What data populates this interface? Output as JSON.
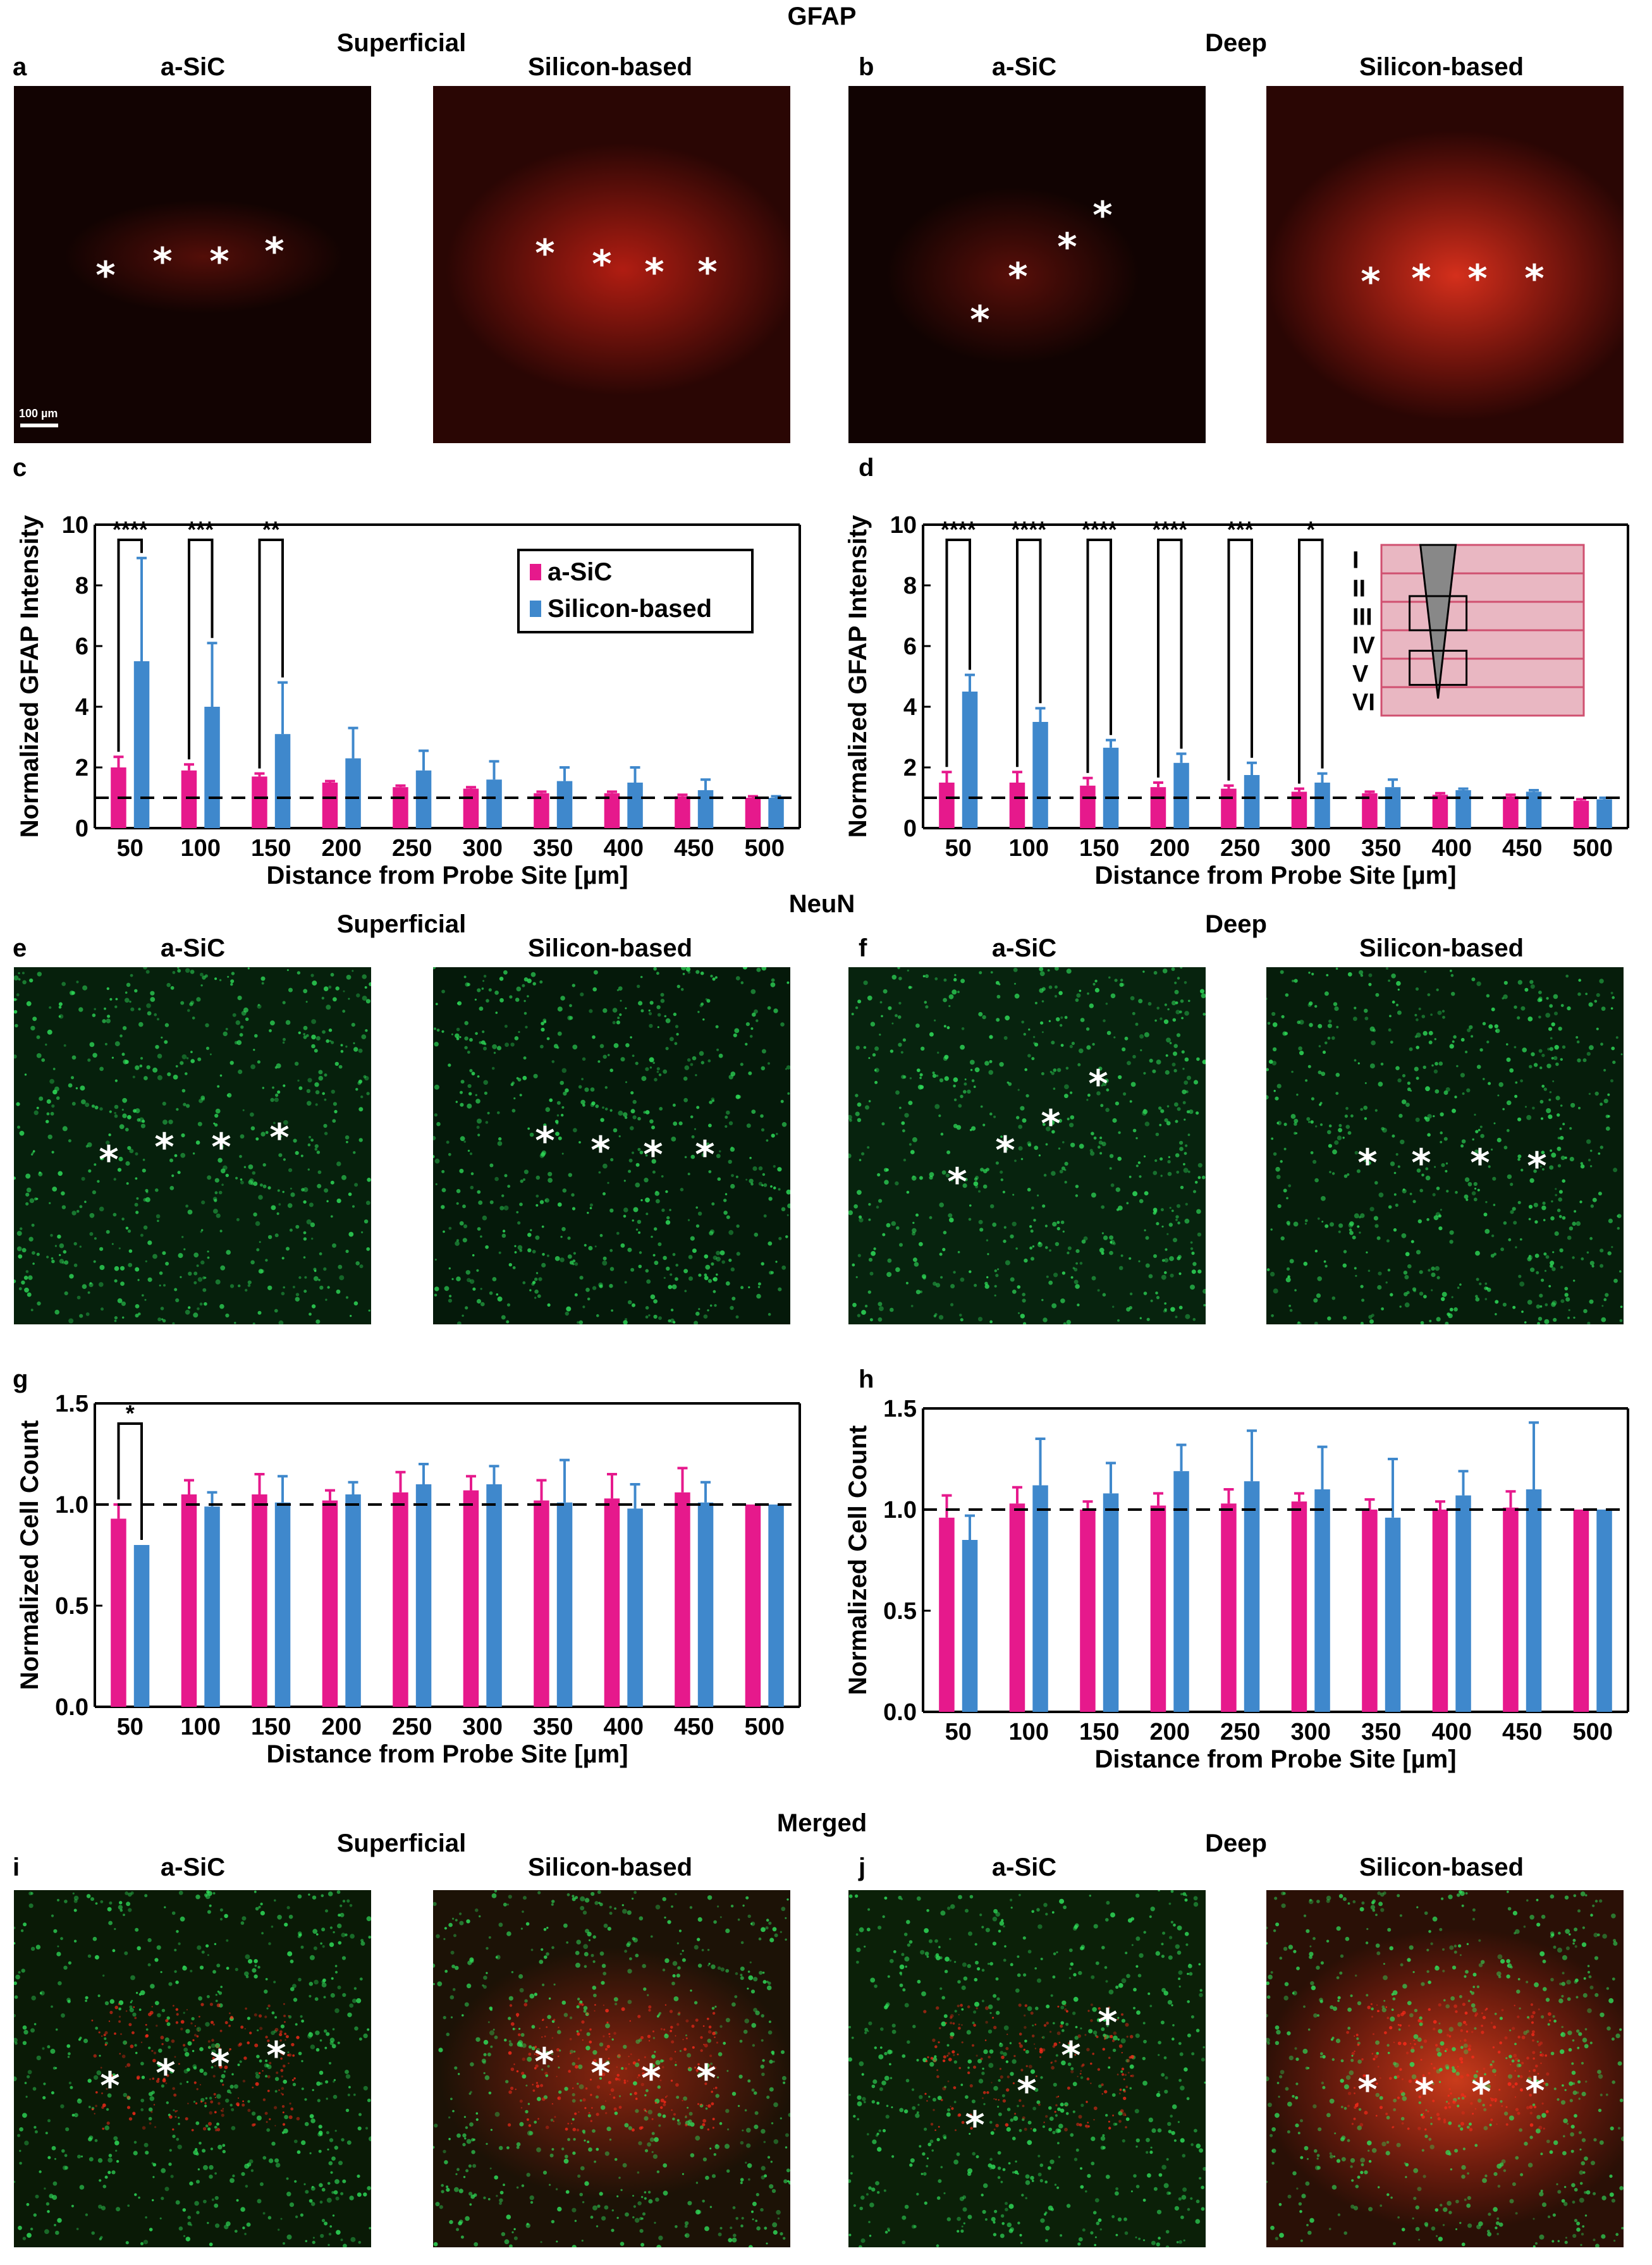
{
  "sections": {
    "gfap": "GFAP",
    "neun": "NeuN",
    "merged": "Merged"
  },
  "regions": {
    "superficial": "Superficial",
    "deep": "Deep"
  },
  "conditions": {
    "asic": "a-SiC",
    "silicon": "Silicon-based"
  },
  "panel_letters": [
    "a",
    "b",
    "c",
    "d",
    "e",
    "f",
    "g",
    "h",
    "i",
    "j"
  ],
  "scale_bar": "100 µm",
  "asterisk": "*",
  "colors": {
    "asic": "#e6198c",
    "silicon": "#3f88cc",
    "gfap_stain": "#ff2a1a",
    "neun_stain": "#2fe05a",
    "inset_fill": "#e9b7c2",
    "inset_line": "#d05070"
  },
  "legend": {
    "asic": "a-SiC",
    "silicon": "Silicon-based"
  },
  "inset_layers": [
    "I",
    "II",
    "III",
    "IV",
    "V",
    "VI"
  ],
  "chart_data": [
    {
      "panel": "c",
      "type": "bar",
      "title": "",
      "xlabel": "Distance from Probe Site [µm]",
      "ylabel": "Normalized GFAP Intensity",
      "ylim": [
        0,
        10
      ],
      "yticks": [
        "0",
        "2",
        "4",
        "6",
        "8",
        "10"
      ],
      "categories": [
        "50",
        "100",
        "150",
        "200",
        "250",
        "300",
        "350",
        "400",
        "450",
        "500"
      ],
      "series": [
        {
          "name": "a-SiC",
          "values": [
            2.0,
            1.9,
            1.7,
            1.5,
            1.35,
            1.3,
            1.15,
            1.15,
            1.05,
            1.0
          ],
          "errors": [
            0.35,
            0.2,
            0.1,
            0.05,
            0.05,
            0.05,
            0.05,
            0.05,
            0.05,
            0.05
          ]
        },
        {
          "name": "Silicon-based",
          "values": [
            5.5,
            4.0,
            3.1,
            2.3,
            1.9,
            1.6,
            1.55,
            1.5,
            1.25,
            1.0
          ],
          "errors": [
            3.4,
            2.1,
            1.7,
            1.0,
            0.65,
            0.6,
            0.45,
            0.5,
            0.35,
            0.05
          ]
        }
      ],
      "baseline": 1.0,
      "significance": [
        {
          "category": "50",
          "label": "****"
        },
        {
          "category": "100",
          "label": "***"
        },
        {
          "category": "150",
          "label": "**"
        }
      ],
      "legend_position": "top-right"
    },
    {
      "panel": "d",
      "type": "bar",
      "title": "",
      "xlabel": "Distance from Probe Site [µm]",
      "ylabel": "Normalized GFAP  Intensity",
      "ylim": [
        0,
        10
      ],
      "yticks": [
        "0",
        "2",
        "4",
        "6",
        "8",
        "10"
      ],
      "categories": [
        "50",
        "100",
        "150",
        "200",
        "250",
        "300",
        "350",
        "400",
        "450",
        "500"
      ],
      "series": [
        {
          "name": "a-SiC",
          "values": [
            1.5,
            1.5,
            1.4,
            1.35,
            1.3,
            1.2,
            1.15,
            1.1,
            1.05,
            0.9
          ],
          "errors": [
            0.35,
            0.35,
            0.25,
            0.15,
            0.1,
            0.1,
            0.05,
            0.05,
            0.05,
            0.05
          ]
        },
        {
          "name": "Silicon-based",
          "values": [
            4.5,
            3.5,
            2.65,
            2.15,
            1.75,
            1.5,
            1.35,
            1.25,
            1.2,
            0.95
          ],
          "errors": [
            0.55,
            0.45,
            0.25,
            0.3,
            0.4,
            0.3,
            0.25,
            0.05,
            0.05,
            0.05
          ]
        }
      ],
      "baseline": 1.0,
      "significance": [
        {
          "category": "50",
          "label": "****"
        },
        {
          "category": "100",
          "label": "****"
        },
        {
          "category": "150",
          "label": "****"
        },
        {
          "category": "200",
          "label": "****"
        },
        {
          "category": "250",
          "label": "***"
        },
        {
          "category": "300",
          "label": "*"
        }
      ]
    },
    {
      "panel": "g",
      "type": "bar",
      "title": "",
      "xlabel": "Distance from Probe Site [µm]",
      "ylabel": "Normalized Cell Count",
      "ylim": [
        0,
        1.5
      ],
      "yticks": [
        "0.0",
        "0.5",
        "1.0",
        "1.5"
      ],
      "categories": [
        "50",
        "100",
        "150",
        "200",
        "250",
        "300",
        "350",
        "400",
        "450",
        "500"
      ],
      "series": [
        {
          "name": "a-SiC",
          "values": [
            0.93,
            1.05,
            1.05,
            1.02,
            1.06,
            1.07,
            1.02,
            1.03,
            1.06,
            1.0
          ],
          "errors": [
            0.07,
            0.07,
            0.1,
            0.05,
            0.1,
            0.07,
            0.1,
            0.12,
            0.12,
            0.0
          ]
        },
        {
          "name": "Silicon-based",
          "values": [
            0.8,
            0.99,
            1.01,
            1.05,
            1.1,
            1.1,
            1.01,
            0.98,
            1.01,
            1.0
          ],
          "errors": [
            0.0,
            0.07,
            0.13,
            0.06,
            0.1,
            0.09,
            0.21,
            0.12,
            0.1,
            0.0
          ]
        }
      ],
      "baseline": 1.0,
      "significance": [
        {
          "category": "50",
          "label": "*"
        }
      ]
    },
    {
      "panel": "h",
      "type": "bar",
      "title": "",
      "xlabel": "Distance from Probe Site [µm]",
      "ylabel": "Normalized Cell Count",
      "ylim": [
        0,
        1.5
      ],
      "yticks": [
        "0.0",
        "0.5",
        "1.0",
        "1.5"
      ],
      "categories": [
        "50",
        "100",
        "150",
        "200",
        "250",
        "300",
        "350",
        "400",
        "450",
        "500"
      ],
      "series": [
        {
          "name": "a-SiC",
          "values": [
            0.96,
            1.03,
            1.0,
            1.02,
            1.03,
            1.04,
            1.0,
            1.0,
            1.01,
            1.0
          ],
          "errors": [
            0.11,
            0.08,
            0.04,
            0.06,
            0.07,
            0.04,
            0.05,
            0.04,
            0.08,
            0.0
          ]
        },
        {
          "name": "Silicon-based",
          "values": [
            0.85,
            1.12,
            1.08,
            1.19,
            1.14,
            1.1,
            0.96,
            1.07,
            1.1,
            1.0
          ],
          "errors": [
            0.12,
            0.23,
            0.15,
            0.13,
            0.25,
            0.21,
            0.29,
            0.12,
            0.33,
            0.0
          ]
        }
      ],
      "baseline": 1.0,
      "significance": []
    }
  ]
}
